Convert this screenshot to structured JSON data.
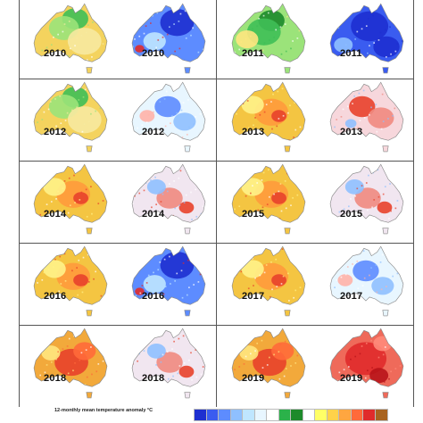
{
  "figure": {
    "rows": [
      {
        "left_year": "2010",
        "right_year": "2010",
        "right_year_b": "2011",
        "right_year_c": "2011",
        "panels": [
          {
            "year": "2010",
            "kind": "rainfall",
            "theme": "wet-north"
          },
          {
            "year": "2010",
            "kind": "temperature",
            "theme": "cool"
          },
          {
            "year": "2011",
            "kind": "rainfall",
            "theme": "very-wet"
          },
          {
            "year": "2011",
            "kind": "temperature",
            "theme": "very-cool"
          }
        ]
      },
      {
        "panels": [
          {
            "year": "2012",
            "kind": "rainfall",
            "theme": "wet-north"
          },
          {
            "year": "2012",
            "kind": "temperature",
            "theme": "mixed-cool"
          },
          {
            "year": "2013",
            "kind": "rainfall",
            "theme": "dry"
          },
          {
            "year": "2013",
            "kind": "temperature",
            "theme": "warm"
          }
        ]
      },
      {
        "panels": [
          {
            "year": "2014",
            "kind": "rainfall",
            "theme": "dry"
          },
          {
            "year": "2014",
            "kind": "temperature",
            "theme": "mixed-warm"
          },
          {
            "year": "2015",
            "kind": "rainfall",
            "theme": "dry"
          },
          {
            "year": "2015",
            "kind": "temperature",
            "theme": "mixed-warm"
          }
        ]
      },
      {
        "panels": [
          {
            "year": "2016",
            "kind": "rainfall",
            "theme": "dry"
          },
          {
            "year": "2016",
            "kind": "temperature",
            "theme": "cool"
          },
          {
            "year": "2017",
            "kind": "rainfall",
            "theme": "dry"
          },
          {
            "year": "2017",
            "kind": "temperature",
            "theme": "mixed-cool"
          }
        ]
      },
      {
        "panels": [
          {
            "year": "2018",
            "kind": "rainfall",
            "theme": "very-dry"
          },
          {
            "year": "2018",
            "kind": "temperature",
            "theme": "mixed-warm"
          },
          {
            "year": "2019",
            "kind": "rainfall",
            "theme": "very-dry"
          },
          {
            "year": "2019",
            "kind": "temperature",
            "theme": "very-warm"
          }
        ]
      }
    ]
  },
  "legend": {
    "label": "12-monthly mean temperature anomaly °C",
    "colors": [
      "#1e2fd0",
      "#3a5cf0",
      "#5d8cff",
      "#8fc0ff",
      "#bfe6ff",
      "#e8f6ff",
      "#ffffff",
      "#2bb24a",
      "#1d8a2b",
      "#ffffff",
      "#ffff66",
      "#ffd24a",
      "#ffa640",
      "#ff6a3a",
      "#e02b2b",
      "#a8631f"
    ]
  },
  "palette": {
    "rain_dry": "#f4c542",
    "rain_wet": "#3fbf56",
    "temp_warm": "#e8412b",
    "temp_cool": "#2d3fd6"
  }
}
